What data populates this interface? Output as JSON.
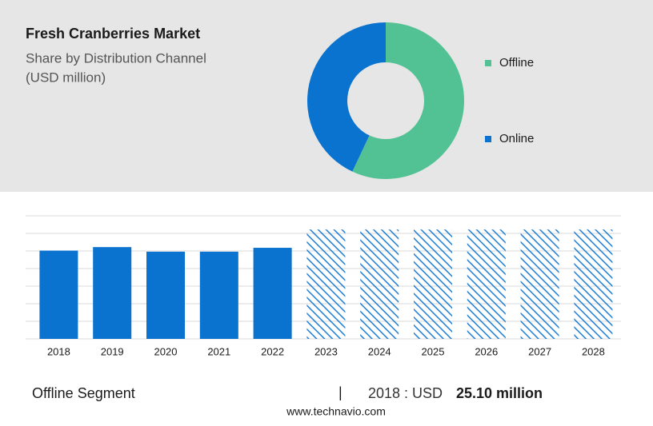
{
  "chart_data": [
    {
      "type": "pie",
      "title": "Fresh Cranberries Market",
      "subtitle": [
        "Share by Distribution Channel",
        "(USD million)"
      ],
      "categories": [
        "Offline",
        "Online"
      ],
      "values": [
        57,
        43
      ],
      "colors": [
        "#52c193",
        "#0a72cf"
      ],
      "donut": true,
      "legend": "right"
    },
    {
      "type": "bar",
      "categories": [
        "2018",
        "2019",
        "2020",
        "2021",
        "2022",
        "2023",
        "2024",
        "2025",
        "2026",
        "2027",
        "2028"
      ],
      "values": [
        25.1,
        26.1,
        24.8,
        24.8,
        25.9,
        31.1,
        31.1,
        31.1,
        31.1,
        31.1,
        31.1
      ],
      "hatch": [
        false,
        false,
        false,
        false,
        false,
        true,
        true,
        true,
        true,
        true,
        true
      ],
      "color": "#0a72cf",
      "ylim": [
        0,
        35
      ],
      "yticks": [
        0,
        5,
        10,
        15,
        20,
        25,
        30,
        35
      ],
      "grid": true
    }
  ],
  "footer": {
    "segment": "Offline Segment",
    "separator": "|",
    "year_label": "2018 : USD",
    "value_label": "25.10 million",
    "source": "www.technavio.com"
  }
}
